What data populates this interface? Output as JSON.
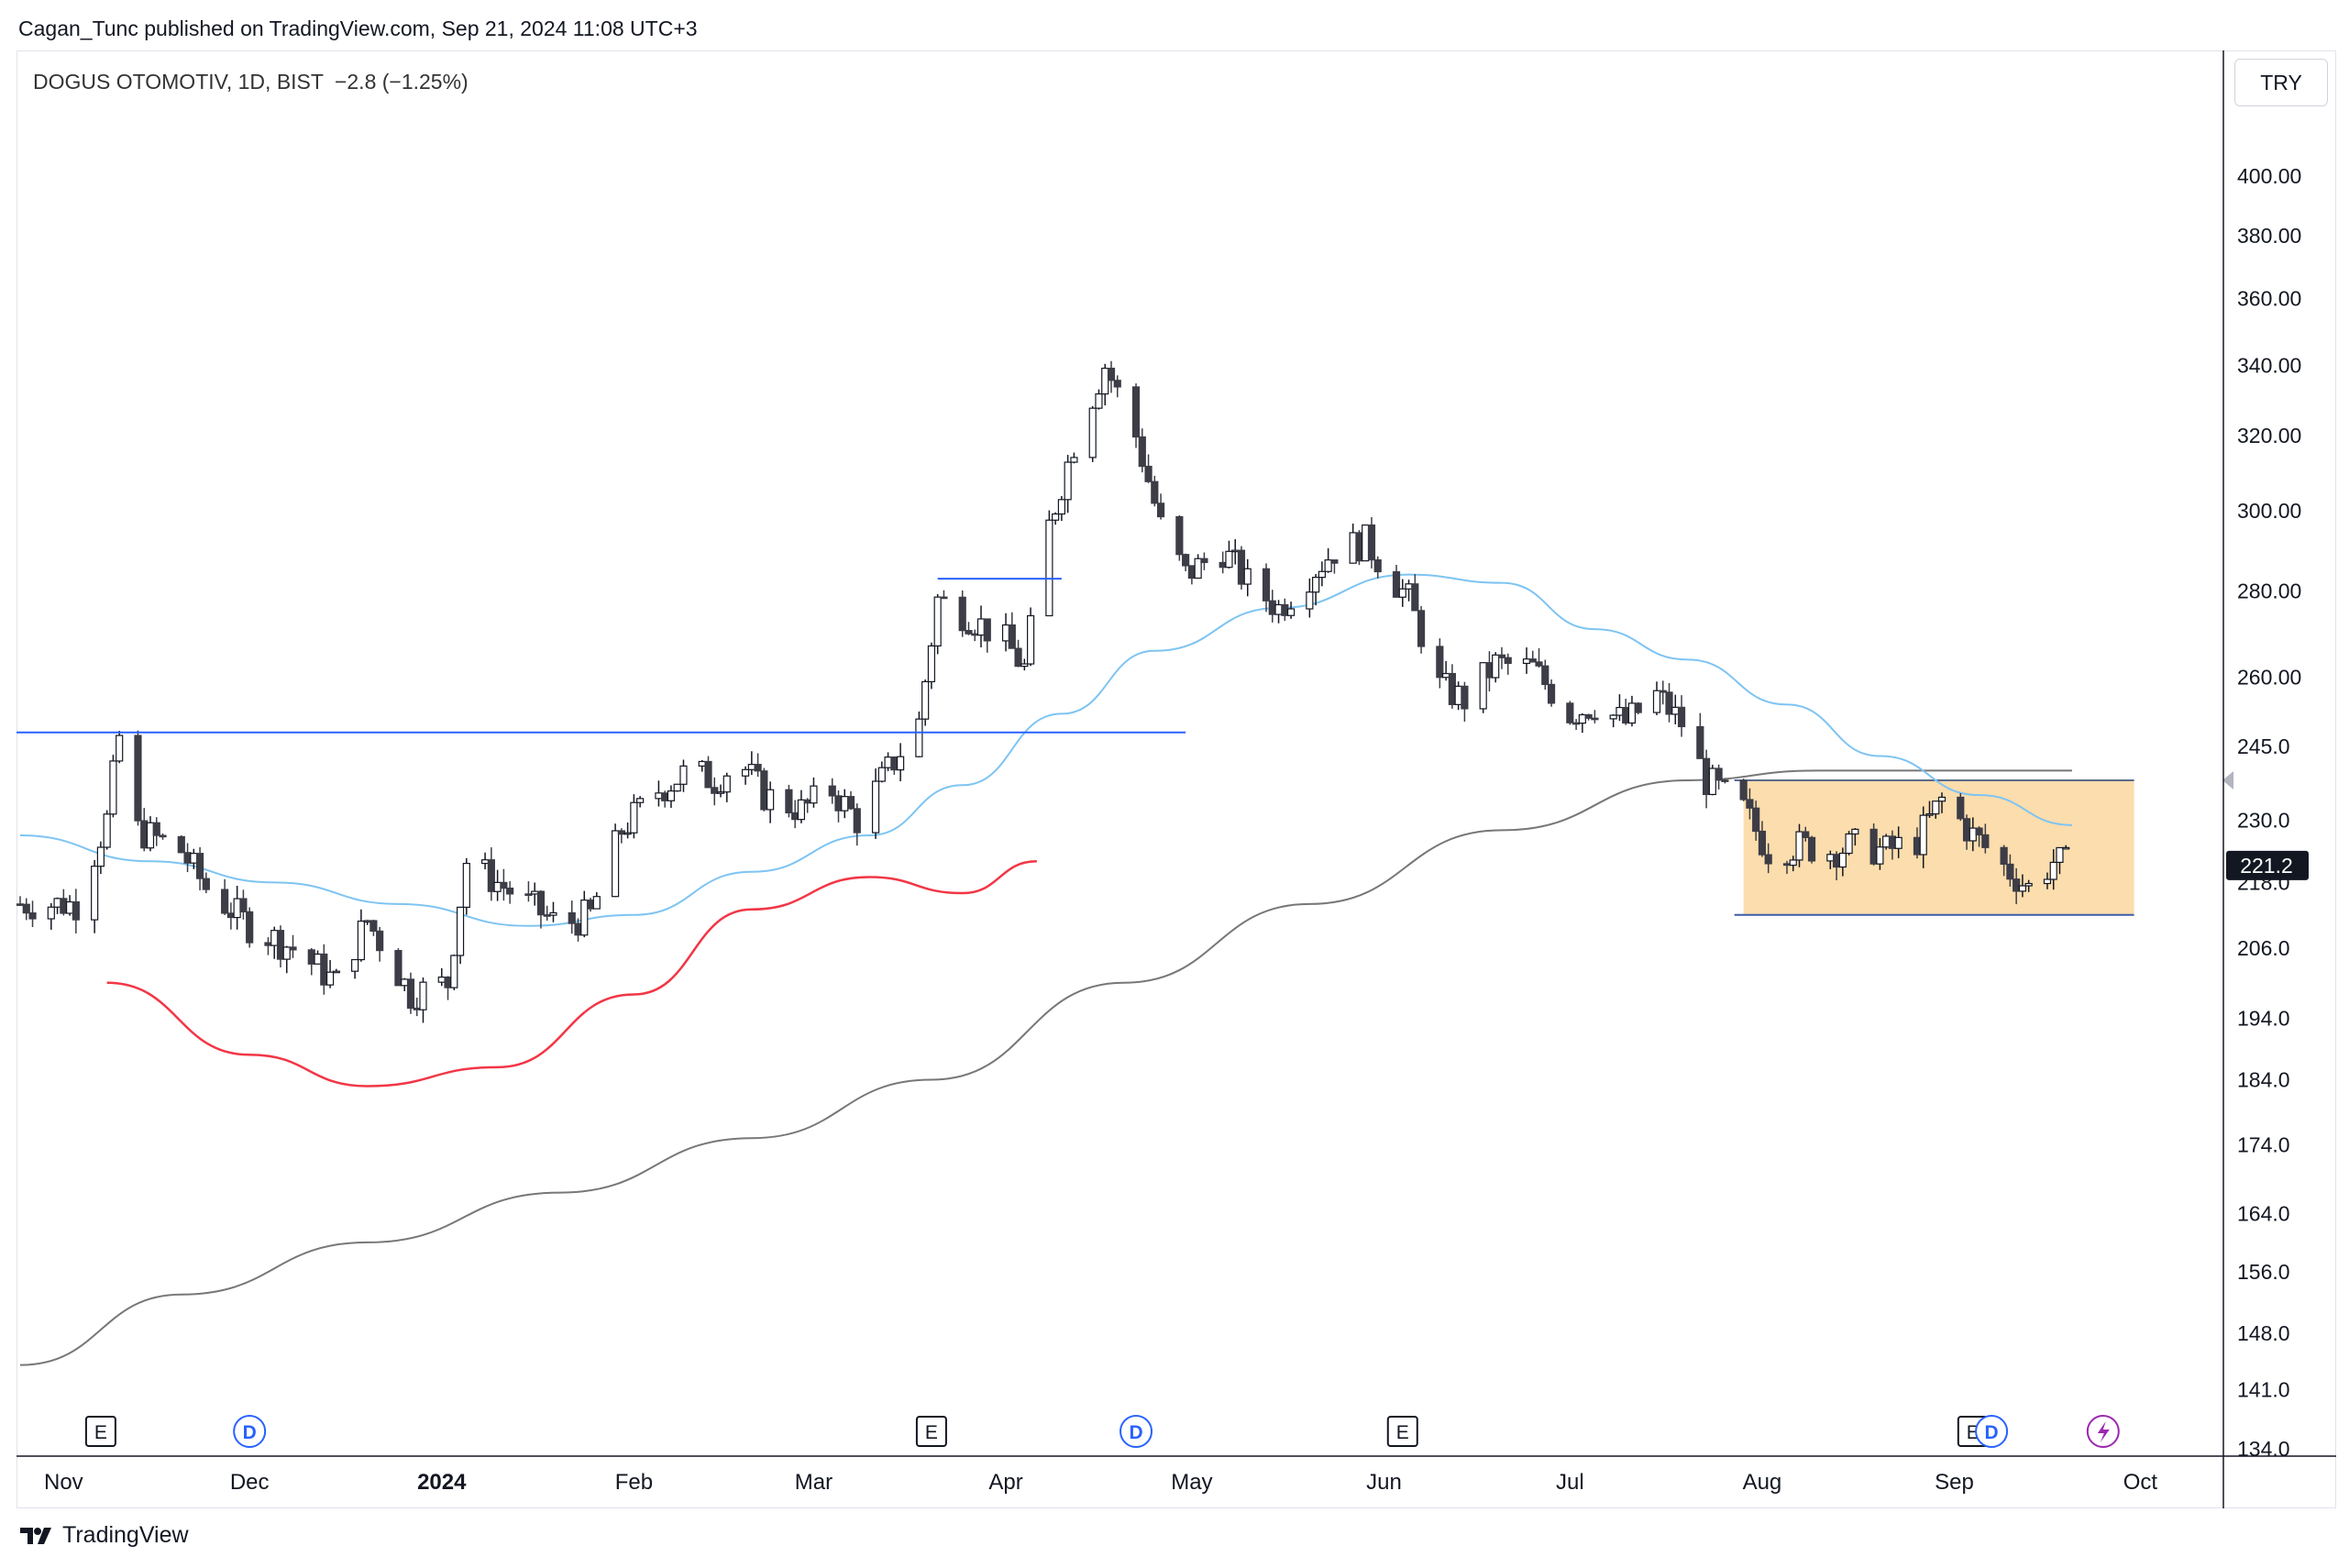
{
  "header": {
    "publish_line": "Cagan_Tunc published on TradingView.com, Sep 21, 2024 11:08 UTC+3"
  },
  "legend": {
    "symbol_line": "DOGUS OTOMOTIV, 1D, BIST",
    "change": "−2.8 (−1.25%)"
  },
  "currency_button": "TRY",
  "last_price_label": "221.2",
  "brand": {
    "name": "TradingView"
  },
  "colors": {
    "candle_up_border": "#131722",
    "candle_down": "#3d3d47",
    "ma_short": "#7ec4f2",
    "ma_long": "#777777",
    "horizontal_line": "#2962ff",
    "arc": "#f23645",
    "range_box": "#fcd9a4",
    "earnings_marker": "#131722",
    "dividend_marker": "#2962ff",
    "split_marker": "#9c27b0"
  },
  "chart_data": {
    "type": "candlestick",
    "title": "DOGUS OTOMOTIV, 1D, BIST",
    "y_scale": "log",
    "y_ticks": [
      "400.00",
      "380.00",
      "360.00",
      "340.00",
      "320.00",
      "300.00",
      "280.00",
      "260.00",
      "245.0",
      "230.0",
      "218.0",
      "206.0",
      "194.0",
      "184.0",
      "174.0",
      "164.0",
      "156.0",
      "148.0",
      "141.0",
      "134.0"
    ],
    "x_ticks": [
      "Nov",
      "Dec",
      "2024",
      "Feb",
      "Mar",
      "Apr",
      "May",
      "Jun",
      "Jul",
      "Aug",
      "Sep",
      "Oct"
    ],
    "ylim": [
      134,
      415
    ],
    "last_price": 221.2,
    "price_path": [
      [
        "2023-10-25",
        214
      ],
      [
        "2023-11-03",
        214
      ],
      [
        "2023-11-08",
        230
      ],
      [
        "2023-11-10",
        247
      ],
      [
        "2023-11-13",
        228
      ],
      [
        "2023-11-20",
        224
      ],
      [
        "2023-11-24",
        217
      ],
      [
        "2023-12-01",
        210
      ],
      [
        "2023-12-08",
        206
      ],
      [
        "2023-12-15",
        200
      ],
      [
        "2023-12-20",
        211
      ],
      [
        "2023-12-27",
        198
      ],
      [
        "2024-01-02",
        200
      ],
      [
        "2024-01-05",
        222
      ],
      [
        "2024-01-10",
        218
      ],
      [
        "2024-01-15",
        214
      ],
      [
        "2024-01-20",
        210
      ],
      [
        "2024-01-25",
        212
      ],
      [
        "2024-01-30",
        228
      ],
      [
        "2024-02-05",
        236
      ],
      [
        "2024-02-10",
        240
      ],
      [
        "2024-02-14",
        238
      ],
      [
        "2024-02-18",
        242
      ],
      [
        "2024-02-22",
        235
      ],
      [
        "2024-02-28",
        232
      ],
      [
        "2024-03-04",
        236
      ],
      [
        "2024-03-08",
        230
      ],
      [
        "2024-03-13",
        240
      ],
      [
        "2024-03-18",
        250
      ],
      [
        "2024-03-21",
        278
      ],
      [
        "2024-03-26",
        274
      ],
      [
        "2024-04-01",
        268
      ],
      [
        "2024-04-04",
        262
      ],
      [
        "2024-04-08",
        296
      ],
      [
        "2024-04-12",
        318
      ],
      [
        "2024-04-17",
        340
      ],
      [
        "2024-04-22",
        320
      ],
      [
        "2024-04-26",
        296
      ],
      [
        "2024-04-30",
        284
      ],
      [
        "2024-05-06",
        290
      ],
      [
        "2024-05-10",
        282
      ],
      [
        "2024-05-15",
        276
      ],
      [
        "2024-05-20",
        284
      ],
      [
        "2024-05-24",
        290
      ],
      [
        "2024-05-29",
        292
      ],
      [
        "2024-06-05",
        278
      ],
      [
        "2024-06-10",
        258
      ],
      [
        "2024-06-14",
        255
      ],
      [
        "2024-06-19",
        263
      ],
      [
        "2024-06-25",
        262
      ],
      [
        "2024-07-01",
        252
      ],
      [
        "2024-07-05",
        254
      ],
      [
        "2024-07-10",
        250
      ],
      [
        "2024-07-15",
        256
      ],
      [
        "2024-07-19",
        250
      ],
      [
        "2024-07-23",
        238
      ],
      [
        "2024-07-29",
        232
      ],
      [
        "2024-08-02",
        224
      ],
      [
        "2024-08-07",
        225
      ],
      [
        "2024-08-12",
        224
      ],
      [
        "2024-08-16",
        225
      ],
      [
        "2024-08-21",
        224
      ],
      [
        "2024-08-26",
        226
      ],
      [
        "2024-08-30",
        234
      ],
      [
        "2024-09-04",
        227
      ],
      [
        "2024-09-09",
        221
      ],
      [
        "2024-09-13",
        217
      ],
      [
        "2024-09-17",
        222
      ],
      [
        "2024-09-20",
        221.2
      ]
    ],
    "ma_short": [
      [
        "2023-10-25",
        227
      ],
      [
        "2023-11-15",
        222
      ],
      [
        "2023-12-05",
        218
      ],
      [
        "2023-12-25",
        214
      ],
      [
        "2024-01-15",
        210
      ],
      [
        "2024-02-01",
        212
      ],
      [
        "2024-02-20",
        220
      ],
      [
        "2024-03-10",
        227
      ],
      [
        "2024-03-25",
        237
      ],
      [
        "2024-04-10",
        252
      ],
      [
        "2024-04-25",
        266
      ],
      [
        "2024-05-15",
        276
      ],
      [
        "2024-06-05",
        284
      ],
      [
        "2024-06-20",
        282
      ],
      [
        "2024-07-05",
        271
      ],
      [
        "2024-07-20",
        264
      ],
      [
        "2024-08-05",
        254
      ],
      [
        "2024-08-20",
        243
      ],
      [
        "2024-09-05",
        235
      ],
      [
        "2024-09-20",
        229
      ]
    ],
    "ma_long": [
      [
        "2023-10-25",
        144
      ],
      [
        "2023-11-20",
        153
      ],
      [
        "2023-12-20",
        160
      ],
      [
        "2024-01-20",
        167
      ],
      [
        "2024-02-20",
        175
      ],
      [
        "2024-03-20",
        184
      ],
      [
        "2024-04-20",
        200
      ],
      [
        "2024-05-20",
        214
      ],
      [
        "2024-06-20",
        228
      ],
      [
        "2024-07-20",
        238
      ],
      [
        "2024-08-10",
        240
      ],
      [
        "2024-09-20",
        240
      ]
    ],
    "resistance_line": {
      "from": "2023-10-25",
      "to": "2024-04-30",
      "y": 248
    },
    "breakout_line": {
      "from": "2024-03-21",
      "to": "2024-04-10",
      "y": 283
    },
    "rounding_bottom": [
      [
        "2023-11-08",
        200
      ],
      [
        "2023-12-01",
        188
      ],
      [
        "2023-12-20",
        183
      ],
      [
        "2024-01-10",
        186
      ],
      [
        "2024-02-01",
        198
      ],
      [
        "2024-02-20",
        213
      ],
      [
        "2024-03-10",
        219
      ],
      [
        "2024-03-25",
        216
      ],
      [
        "2024-04-06",
        222
      ]
    ],
    "range_box": {
      "from": "2024-07-29",
      "to": "2024-09-30",
      "top": 238,
      "bottom": 212
    },
    "events": [
      {
        "type": "E",
        "date": "2023-11-07"
      },
      {
        "type": "D",
        "date": "2023-12-01"
      },
      {
        "type": "E",
        "date": "2024-03-20"
      },
      {
        "type": "D",
        "date": "2024-04-22"
      },
      {
        "type": "E",
        "date": "2024-06-04"
      },
      {
        "type": "E",
        "date": "2024-09-04"
      },
      {
        "type": "D",
        "date": "2024-09-07"
      },
      {
        "type": "S",
        "date": "2024-09-25"
      }
    ]
  }
}
